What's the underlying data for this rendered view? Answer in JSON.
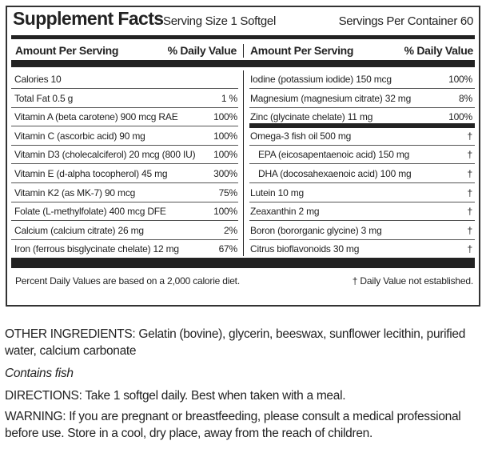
{
  "header": {
    "title": "Supplement Facts",
    "serving_size": "Serving Size 1 Softgel",
    "servings_per_container": "Servings Per Container 60"
  },
  "column_headers": {
    "amount": "Amount Per Serving",
    "daily_value": "% Daily Value"
  },
  "left_rows": [
    {
      "name": "Calories 10"
    },
    {
      "name": "Total Fat  0.5 g",
      "dv": "1 %"
    },
    {
      "name": "Vitamin A (beta carotene) 900 mcg RAE",
      "dv": "100%"
    },
    {
      "name": "Vitamin C (ascorbic acid) 90 mg",
      "dv": "100%"
    },
    {
      "name": "Vitamin D3 (cholecalciferol) 20 mcg (800 IU)",
      "dv": "100%"
    },
    {
      "name": "Vitamin E (d-alpha tocopherol) 45 mg",
      "dv": "300%"
    },
    {
      "name": "Vitamin K2 (as MK-7) 90 mcg",
      "dv": "75%"
    },
    {
      "name": "Folate (L-methylfolate) 400 mcg DFE",
      "dv": "100%"
    },
    {
      "name": "Calcium (calcium citrate) 26 mg",
      "dv": "2%"
    },
    {
      "name": "Iron (ferrous bisglycinate chelate) 12 mg",
      "dv": "67%"
    }
  ],
  "right_rows": [
    {
      "name": "Iodine (potassium iodide) 150 mcg",
      "dv": "100%"
    },
    {
      "name": "Magnesium (magnesium citrate) 32 mg",
      "dv": "8%"
    },
    {
      "name": "Zinc (glycinate chelate) 11 mg",
      "dv": "100%"
    },
    {
      "name": "Omega-3 fish oil 500 mg",
      "dv": "†"
    },
    {
      "name": "EPA (eicosapentaenoic acid) 150 mg",
      "dv": "†"
    },
    {
      "name": "DHA (docosahexaenoic acid) 100 mg",
      "dv": "†"
    },
    {
      "name": "Lutein 10 mg",
      "dv": "†"
    },
    {
      "name": "Zeaxanthin 2 mg",
      "dv": "†"
    },
    {
      "name": "Boron (bororganic glycine) 3 mg",
      "dv": "†"
    },
    {
      "name": "Citrus bioflavonoids 30 mg",
      "dv": "†"
    }
  ],
  "footnotes": {
    "daily_values": "Percent Daily Values are based on a 2,000 calorie diet.",
    "not_established": "† Daily Value not established."
  },
  "other_ingredients": "OTHER INGREDIENTS: Gelatin (bovine), glycerin, beeswax, sunflower lecithin, purified water, calcium carbonate",
  "allergen": "Contains fish",
  "directions": "DIRECTIONS: Take 1 softgel daily. Best when taken with a meal.",
  "warning": "WARNING: If you are pregnant or breastfeeding, please consult a medical professional before use. Store in a cool, dry place, away from the reach of children."
}
